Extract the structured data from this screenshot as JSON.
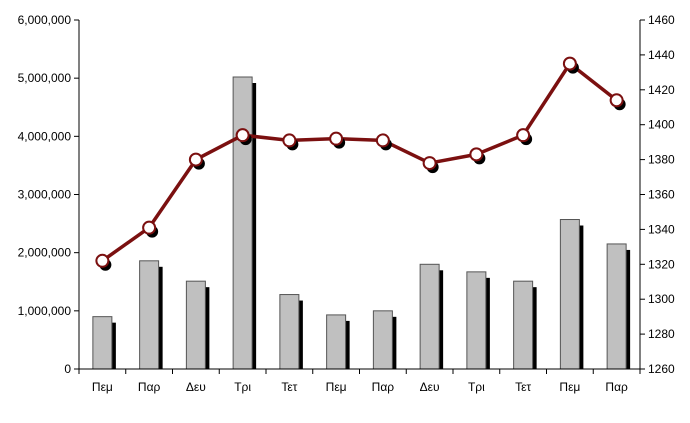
{
  "chart_data": {
    "type": "bar",
    "categories": [
      "Πεμ",
      "Παρ",
      "Δευ",
      "Τρι",
      "Τετ",
      "Πεμ",
      "Παρ",
      "Δευ",
      "Τρι",
      "Τετ",
      "Πεμ",
      "Παρ"
    ],
    "series": [
      {
        "type": "bar",
        "axis": "left",
        "values": [
          900000,
          1860000,
          1510000,
          5020000,
          1280000,
          930000,
          1000000,
          1800000,
          1670000,
          1510000,
          2570000,
          2150000
        ]
      },
      {
        "type": "line",
        "axis": "right",
        "values": [
          1322,
          1341,
          1380,
          1394,
          1391,
          1392,
          1391,
          1378,
          1383,
          1394,
          1435,
          1414
        ]
      }
    ],
    "y_left": {
      "ylim": [
        0,
        6000000
      ],
      "ticks": [
        0,
        1000000,
        2000000,
        3000000,
        4000000,
        5000000,
        6000000
      ],
      "tick_labels": [
        "0",
        "1,000,000",
        "2,000,000",
        "3,000,000",
        "4,000,000",
        "5,000,000",
        "6,000,000"
      ]
    },
    "y_right": {
      "ylim": [
        1260,
        1460
      ],
      "ticks": [
        1260,
        1280,
        1300,
        1320,
        1340,
        1360,
        1380,
        1400,
        1420,
        1440,
        1460
      ],
      "tick_labels": [
        "1260",
        "1280",
        "1300",
        "1320",
        "1340",
        "1360",
        "1380",
        "1400",
        "1420",
        "1440",
        "1460"
      ]
    },
    "grid": false,
    "legend": "none",
    "colors": {
      "bar_fill": "#c0c0c0",
      "bar_stroke": "#555555",
      "bar_shadow": "#000000",
      "line": "#7b1010",
      "marker_fill": "#ffffff",
      "marker_shadow": "#000000"
    }
  }
}
